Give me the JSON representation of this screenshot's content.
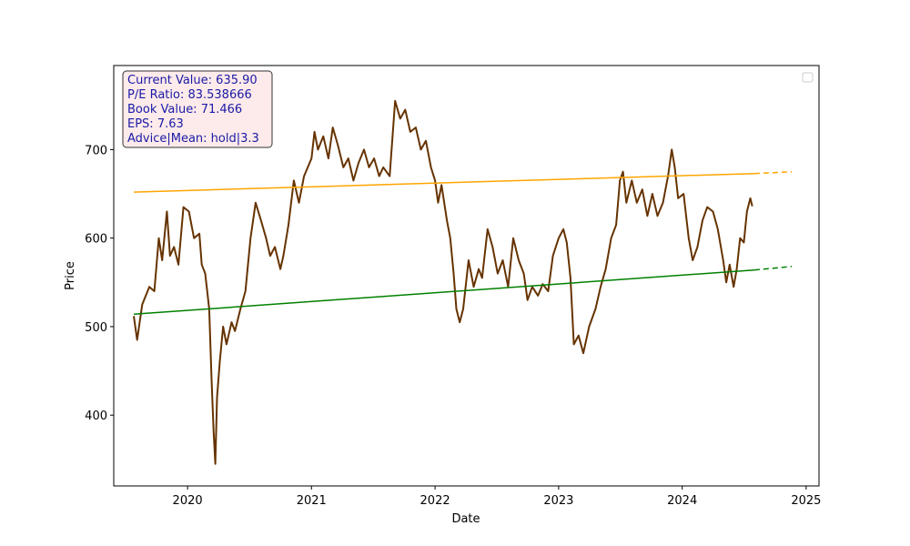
{
  "chart_data": {
    "type": "line",
    "xlabel": "Date",
    "ylabel": "Price",
    "x_range": [
      "2019-05-28",
      "2025-02-08"
    ],
    "y_range": [
      320,
      795
    ],
    "x_ticks": [
      "2020",
      "2021",
      "2022",
      "2023",
      "2024",
      "2025"
    ],
    "y_ticks": [
      400,
      500,
      600,
      700
    ],
    "grid": false,
    "legend": {
      "placement": "top-right",
      "entries": []
    },
    "info_box": {
      "lines": [
        "Current Value: 635.90",
        "P/E Ratio: 83.538666",
        "Book Value: 71.466",
        "EPS: 7.63",
        "Advice|Mean: hold|3.3"
      ],
      "text_color": "#1a1aa6",
      "background": "#fdeaea",
      "border": "#333333"
    },
    "series": [
      {
        "role": "price",
        "color": "#663300",
        "points": [
          [
            "2019-07-26",
            512
          ],
          [
            "2019-08-05",
            485
          ],
          [
            "2019-08-20",
            525
          ],
          [
            "2019-09-10",
            545
          ],
          [
            "2019-09-25",
            540
          ],
          [
            "2019-10-08",
            600
          ],
          [
            "2019-10-18",
            575
          ],
          [
            "2019-11-01",
            630
          ],
          [
            "2019-11-10",
            580
          ],
          [
            "2019-11-22",
            590
          ],
          [
            "2019-12-05",
            570
          ],
          [
            "2019-12-20",
            635
          ],
          [
            "2020-01-05",
            630
          ],
          [
            "2020-01-20",
            600
          ],
          [
            "2020-02-05",
            605
          ],
          [
            "2020-02-12",
            570
          ],
          [
            "2020-02-22",
            560
          ],
          [
            "2020-03-05",
            520
          ],
          [
            "2020-03-12",
            440
          ],
          [
            "2020-03-18",
            380
          ],
          [
            "2020-03-23",
            345
          ],
          [
            "2020-03-28",
            420
          ],
          [
            "2020-04-05",
            460
          ],
          [
            "2020-04-15",
            500
          ],
          [
            "2020-04-25",
            480
          ],
          [
            "2020-05-10",
            505
          ],
          [
            "2020-05-20",
            495
          ],
          [
            "2020-06-05",
            520
          ],
          [
            "2020-06-20",
            540
          ],
          [
            "2020-07-05",
            600
          ],
          [
            "2020-07-20",
            640
          ],
          [
            "2020-08-05",
            620
          ],
          [
            "2020-08-20",
            600
          ],
          [
            "2020-09-01",
            580
          ],
          [
            "2020-09-15",
            590
          ],
          [
            "2020-10-01",
            565
          ],
          [
            "2020-10-10",
            580
          ],
          [
            "2020-10-25",
            615
          ],
          [
            "2020-11-10",
            665
          ],
          [
            "2020-11-25",
            640
          ],
          [
            "2020-12-10",
            670
          ],
          [
            "2021-01-01",
            690
          ],
          [
            "2021-01-10",
            720
          ],
          [
            "2021-01-20",
            700
          ],
          [
            "2021-02-05",
            715
          ],
          [
            "2021-02-20",
            690
          ],
          [
            "2021-03-05",
            725
          ],
          [
            "2021-03-20",
            705
          ],
          [
            "2021-04-05",
            680
          ],
          [
            "2021-04-20",
            690
          ],
          [
            "2021-05-05",
            665
          ],
          [
            "2021-05-20",
            685
          ],
          [
            "2021-06-05",
            700
          ],
          [
            "2021-06-20",
            680
          ],
          [
            "2021-07-05",
            690
          ],
          [
            "2021-07-20",
            670
          ],
          [
            "2021-08-01",
            680
          ],
          [
            "2021-08-20",
            670
          ],
          [
            "2021-09-05",
            755
          ],
          [
            "2021-09-20",
            735
          ],
          [
            "2021-10-05",
            745
          ],
          [
            "2021-10-20",
            720
          ],
          [
            "2021-11-05",
            725
          ],
          [
            "2021-11-20",
            700
          ],
          [
            "2021-12-05",
            710
          ],
          [
            "2021-12-20",
            680
          ],
          [
            "2022-01-01",
            665
          ],
          [
            "2022-01-10",
            640
          ],
          [
            "2022-01-20",
            660
          ],
          [
            "2022-02-05",
            620
          ],
          [
            "2022-02-15",
            600
          ],
          [
            "2022-02-25",
            560
          ],
          [
            "2022-03-05",
            520
          ],
          [
            "2022-03-15",
            505
          ],
          [
            "2022-03-25",
            520
          ],
          [
            "2022-04-10",
            575
          ],
          [
            "2022-04-25",
            545
          ],
          [
            "2022-05-10",
            565
          ],
          [
            "2022-05-20",
            555
          ],
          [
            "2022-06-05",
            610
          ],
          [
            "2022-06-20",
            590
          ],
          [
            "2022-07-05",
            560
          ],
          [
            "2022-07-20",
            575
          ],
          [
            "2022-08-05",
            545
          ],
          [
            "2022-08-20",
            600
          ],
          [
            "2022-09-05",
            575
          ],
          [
            "2022-09-20",
            560
          ],
          [
            "2022-10-01",
            530
          ],
          [
            "2022-10-15",
            545
          ],
          [
            "2022-11-01",
            535
          ],
          [
            "2022-11-15",
            548
          ],
          [
            "2022-12-01",
            540
          ],
          [
            "2022-12-15",
            580
          ],
          [
            "2023-01-01",
            600
          ],
          [
            "2023-01-15",
            610
          ],
          [
            "2023-01-25",
            595
          ],
          [
            "2023-02-05",
            555
          ],
          [
            "2023-02-15",
            480
          ],
          [
            "2023-03-01",
            490
          ],
          [
            "2023-03-15",
            470
          ],
          [
            "2023-04-01",
            500
          ],
          [
            "2023-04-20",
            520
          ],
          [
            "2023-05-05",
            545
          ],
          [
            "2023-05-20",
            565
          ],
          [
            "2023-06-05",
            600
          ],
          [
            "2023-06-20",
            615
          ],
          [
            "2023-07-01",
            665
          ],
          [
            "2023-07-10",
            675
          ],
          [
            "2023-07-20",
            640
          ],
          [
            "2023-08-05",
            665
          ],
          [
            "2023-08-20",
            640
          ],
          [
            "2023-09-05",
            655
          ],
          [
            "2023-09-20",
            625
          ],
          [
            "2023-10-05",
            650
          ],
          [
            "2023-10-20",
            625
          ],
          [
            "2023-11-05",
            640
          ],
          [
            "2023-11-20",
            670
          ],
          [
            "2023-12-01",
            700
          ],
          [
            "2023-12-10",
            680
          ],
          [
            "2023-12-20",
            645
          ],
          [
            "2024-01-05",
            650
          ],
          [
            "2024-01-20",
            600
          ],
          [
            "2024-02-01",
            575
          ],
          [
            "2024-02-15",
            590
          ],
          [
            "2024-03-01",
            620
          ],
          [
            "2024-03-15",
            635
          ],
          [
            "2024-04-01",
            630
          ],
          [
            "2024-04-15",
            610
          ],
          [
            "2024-05-01",
            575
          ],
          [
            "2024-05-10",
            550
          ],
          [
            "2024-05-20",
            570
          ],
          [
            "2024-06-01",
            545
          ],
          [
            "2024-06-10",
            565
          ],
          [
            "2024-06-20",
            600
          ],
          [
            "2024-07-01",
            595
          ],
          [
            "2024-07-10",
            630
          ],
          [
            "2024-07-20",
            645
          ],
          [
            "2024-07-26",
            636
          ]
        ]
      },
      {
        "role": "trend-upper",
        "color": "#ffa500",
        "points": [
          [
            "2019-07-26",
            652
          ],
          [
            "2024-08-01",
            673
          ]
        ],
        "projection": [
          [
            "2024-08-01",
            673
          ],
          [
            "2024-11-20",
            675
          ]
        ]
      },
      {
        "role": "trend-lower",
        "color": "#008000",
        "points": [
          [
            "2019-07-26",
            514
          ],
          [
            "2024-08-01",
            564
          ]
        ],
        "projection": [
          [
            "2024-08-01",
            564
          ],
          [
            "2024-11-20",
            568
          ]
        ]
      }
    ]
  }
}
